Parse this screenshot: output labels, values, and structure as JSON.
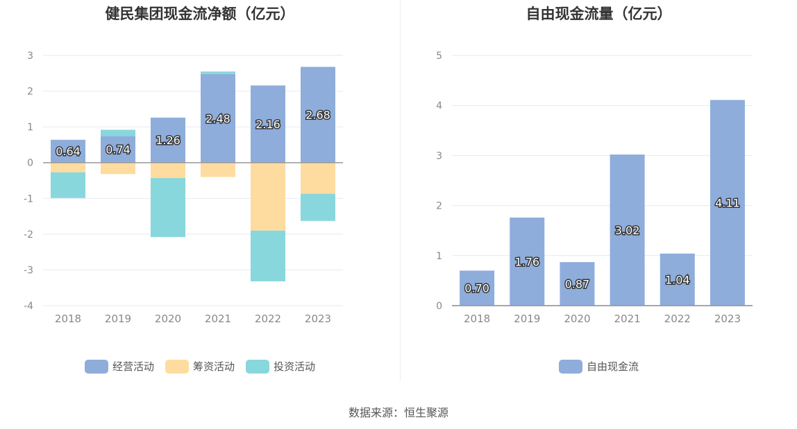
{
  "charts": [
    {
      "title": "健民集团现金流净额（亿元）",
      "chart_data": {
        "type": "bar",
        "stacked": true,
        "categories": [
          "2018",
          "2019",
          "2020",
          "2021",
          "2022",
          "2023"
        ],
        "series": [
          {
            "name": "经营活动",
            "color": "#8eaddb",
            "values": [
              0.64,
              0.74,
              1.26,
              2.48,
              2.16,
              2.68
            ],
            "show_labels": true
          },
          {
            "name": "筹资活动",
            "color": "#fedc9f",
            "values": [
              -0.27,
              -0.32,
              -0.43,
              -0.4,
              -1.9,
              -0.87
            ],
            "show_labels": false
          },
          {
            "name": "投资活动",
            "color": "#88d7dc",
            "values": [
              -0.72,
              0.18,
              -1.65,
              0.07,
              -1.42,
              -0.76
            ],
            "show_labels": false
          }
        ],
        "ylim": [
          -4,
          3
        ],
        "yticks": [
          3,
          2,
          1,
          0,
          -1,
          -2,
          -3,
          -4
        ],
        "grid": true,
        "legend": "bottom-center"
      }
    },
    {
      "title": "自由现金流量（亿元）",
      "chart_data": {
        "type": "bar",
        "categories": [
          "2018",
          "2019",
          "2020",
          "2021",
          "2022",
          "2023"
        ],
        "series": [
          {
            "name": "自由现金流",
            "color": "#8eaddb",
            "values": [
              0.7,
              1.76,
              0.87,
              3.02,
              1.04,
              4.11
            ],
            "show_labels": true
          }
        ],
        "ylim": [
          0,
          5
        ],
        "yticks": [
          5,
          4,
          3,
          2,
          1,
          0
        ],
        "grid": true,
        "legend": "bottom-center"
      }
    }
  ],
  "source": "数据来源：恒生聚源"
}
